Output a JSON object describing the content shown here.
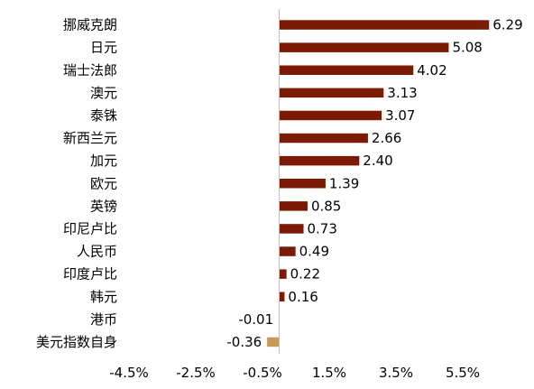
{
  "chart_data": {
    "type": "bar",
    "orientation": "horizontal",
    "title": "",
    "xlabel": "",
    "ylabel": "",
    "categories": [
      "挪威克朗",
      "日元",
      "瑞士法郎",
      "澳元",
      "泰铢",
      "新西兰元",
      "加元",
      "欧元",
      "英镑",
      "印尼卢比",
      "人民币",
      "印度卢比",
      "韩元",
      "港币",
      "美元指数自身"
    ],
    "values": [
      6.29,
      5.08,
      4.02,
      3.13,
      3.07,
      2.66,
      2.4,
      1.39,
      0.85,
      0.73,
      0.49,
      0.22,
      0.16,
      -0.01,
      -0.36
    ],
    "value_labels": [
      "6.29",
      "5.08",
      "4.02",
      "3.13",
      "3.07",
      "2.66",
      "2.40",
      "1.39",
      "0.85",
      "0.73",
      "0.49",
      "0.22",
      "0.16",
      "-0.01",
      "-0.36"
    ],
    "xlim": [
      -4.5,
      5.5
    ],
    "x_ticks": [
      -4.5,
      -2.5,
      -0.5,
      1.5,
      3.5,
      5.5
    ],
    "x_tick_labels": [
      "-4.5%",
      "-2.5%",
      "-0.5%",
      "1.5%",
      "3.5%",
      "5.5%"
    ],
    "grid": false,
    "legend": "none",
    "colors": {
      "currency_bar": "#7b1a05",
      "highlight_bar": "#c49a5a",
      "axis_line": "#bfbfbf"
    },
    "highlight_category": "美元指数自身"
  }
}
